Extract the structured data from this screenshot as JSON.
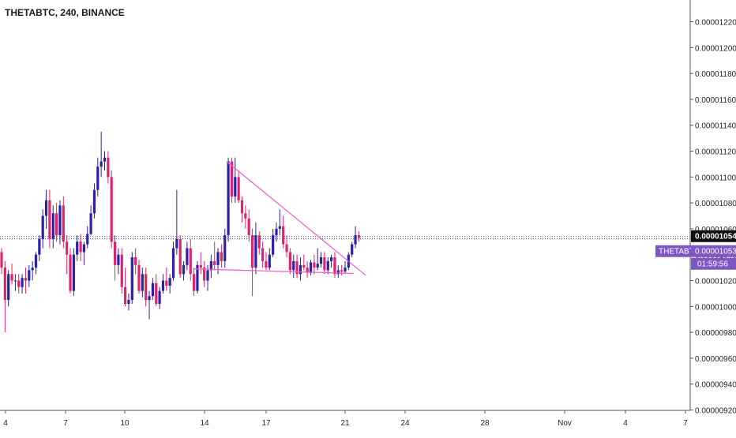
{
  "header": {
    "title": "THETABTC, 240, BINANCE"
  },
  "colors": {
    "up": "#2c1fa8",
    "down": "#e0246c",
    "trendline": "#ff55d0",
    "price_line": "#3a3aa0",
    "label_bg": "#7e57c2",
    "axis_text": "#222222"
  },
  "chart_data": {
    "type": "candlestick",
    "symbol": "THETABTC",
    "timeframe": "240",
    "exchange": "BINANCE",
    "ylim": [
      9.2e-06,
      1.23e-05
    ],
    "y_ticks": [
      "0.00001220",
      "0.00001200",
      "0.00001180",
      "0.00001160",
      "0.00001140",
      "0.00001120",
      "0.00001100",
      "0.00001080",
      "0.00001060",
      "0.00001040",
      "0.00001020",
      "0.00001000",
      "0.00000980",
      "0.00000960",
      "0.00000940",
      "0.00000920"
    ],
    "x_ticks": [
      {
        "label": "4",
        "date": "2019-10-04"
      },
      {
        "label": "7",
        "date": "2019-10-07"
      },
      {
        "label": "10",
        "date": "2019-10-10"
      },
      {
        "label": "14",
        "date": "2019-10-14"
      },
      {
        "label": "17",
        "date": "2019-10-17"
      },
      {
        "label": "21",
        "date": "2019-10-21"
      },
      {
        "label": "24",
        "date": "2019-10-24"
      },
      {
        "label": "28",
        "date": "2019-10-28"
      },
      {
        "label": "Nov",
        "date": "2019-11-01"
      },
      {
        "label": "4",
        "date": "2019-11-04"
      },
      {
        "label": "7",
        "date": "2019-11-07"
      }
    ],
    "price_labels": {
      "last": "0.00001054",
      "symbol_tag": "THETABTC",
      "symbol_price": "0.00001053",
      "countdown": "01:59:56"
    },
    "candles": [
      [
        10.42,
        10.45,
        10.25,
        10.3
      ],
      [
        10.3,
        10.35,
        9.8,
        10.05
      ],
      [
        10.05,
        10.28,
        10.0,
        10.25
      ],
      [
        10.25,
        10.33,
        10.17,
        10.2
      ],
      [
        10.2,
        10.25,
        10.12,
        10.2
      ],
      [
        10.2,
        10.25,
        10.1,
        10.15
      ],
      [
        10.15,
        10.25,
        10.1,
        10.22
      ],
      [
        10.22,
        10.3,
        10.1,
        10.2
      ],
      [
        10.2,
        10.32,
        10.15,
        10.28
      ],
      [
        10.28,
        10.35,
        10.2,
        10.3
      ],
      [
        10.3,
        10.42,
        10.25,
        10.4
      ],
      [
        10.4,
        10.55,
        10.35,
        10.52
      ],
      [
        10.52,
        10.75,
        10.45,
        10.7
      ],
      [
        10.7,
        10.9,
        10.6,
        10.82
      ],
      [
        10.82,
        10.9,
        10.45,
        10.52
      ],
      [
        10.52,
        10.78,
        10.45,
        10.72
      ],
      [
        10.72,
        10.8,
        10.5,
        10.55
      ],
      [
        10.55,
        10.82,
        10.48,
        10.78
      ],
      [
        10.78,
        10.85,
        10.45,
        10.5
      ],
      [
        10.5,
        10.55,
        10.25,
        10.4
      ],
      [
        10.4,
        10.45,
        10.1,
        10.12
      ],
      [
        10.12,
        10.45,
        10.08,
        10.4
      ],
      [
        10.4,
        10.55,
        10.35,
        10.5
      ],
      [
        10.5,
        10.56,
        10.35,
        10.42
      ],
      [
        10.42,
        10.5,
        10.32,
        10.48
      ],
      [
        10.48,
        10.62,
        10.45,
        10.56
      ],
      [
        10.56,
        10.78,
        10.55,
        10.72
      ],
      [
        10.72,
        10.95,
        10.68,
        10.9
      ],
      [
        10.9,
        11.15,
        10.85,
        11.08
      ],
      [
        11.08,
        11.35,
        11.0,
        11.12
      ],
      [
        11.12,
        11.2,
        11.05,
        11.15
      ],
      [
        11.15,
        11.2,
        10.95,
        11.0
      ],
      [
        11.0,
        11.05,
        10.45,
        10.5
      ],
      [
        10.5,
        10.55,
        10.2,
        10.32
      ],
      [
        10.32,
        10.45,
        10.25,
        10.4
      ],
      [
        10.4,
        10.45,
        10.1,
        10.15
      ],
      [
        10.15,
        10.3,
        10.0,
        10.02
      ],
      [
        10.02,
        10.1,
        9.97,
        10.05
      ],
      [
        10.05,
        10.42,
        10.02,
        10.38
      ],
      [
        10.38,
        10.45,
        10.25,
        10.32
      ],
      [
        10.32,
        10.36,
        10.1,
        10.12
      ],
      [
        10.12,
        10.3,
        10.07,
        10.25
      ],
      [
        10.25,
        10.3,
        10.0,
        10.05
      ],
      [
        10.05,
        10.12,
        9.9,
        10.08
      ],
      [
        10.08,
        10.22,
        10.05,
        10.18
      ],
      [
        10.18,
        10.25,
        10.0,
        10.02
      ],
      [
        10.02,
        10.15,
        9.98,
        10.12
      ],
      [
        10.12,
        10.25,
        10.1,
        10.2
      ],
      [
        10.2,
        10.3,
        10.12,
        10.16
      ],
      [
        10.16,
        10.25,
        10.1,
        10.22
      ],
      [
        10.22,
        10.5,
        10.2,
        10.45
      ],
      [
        10.45,
        10.9,
        10.4,
        10.52
      ],
      [
        10.52,
        10.55,
        10.22,
        10.25
      ],
      [
        10.25,
        10.35,
        10.2,
        10.32
      ],
      [
        10.32,
        10.5,
        10.28,
        10.45
      ],
      [
        10.45,
        10.52,
        10.2,
        10.25
      ],
      [
        10.25,
        10.3,
        10.08,
        10.12
      ],
      [
        10.12,
        10.35,
        10.1,
        10.32
      ],
      [
        10.32,
        10.42,
        10.25,
        10.3
      ],
      [
        10.3,
        10.35,
        10.15,
        10.2
      ],
      [
        10.2,
        10.32,
        10.12,
        10.28
      ],
      [
        10.28,
        10.4,
        10.22,
        10.35
      ],
      [
        10.35,
        10.5,
        10.28,
        10.32
      ],
      [
        10.32,
        10.45,
        10.25,
        10.42
      ],
      [
        10.42,
        10.48,
        10.3,
        10.35
      ],
      [
        10.35,
        10.6,
        10.3,
        10.55
      ],
      [
        10.55,
        11.15,
        10.5,
        11.12
      ],
      [
        11.12,
        11.15,
        10.8,
        10.85
      ],
      [
        10.85,
        11.15,
        10.8,
        11.0
      ],
      [
        11.0,
        11.05,
        10.8,
        10.82
      ],
      [
        10.82,
        10.85,
        10.65,
        10.72
      ],
      [
        10.72,
        10.78,
        10.6,
        10.68
      ],
      [
        10.68,
        10.75,
        10.5,
        10.55
      ],
      [
        10.55,
        10.6,
        10.08,
        10.3
      ],
      [
        10.3,
        10.65,
        10.25,
        10.55
      ],
      [
        10.55,
        10.58,
        10.4,
        10.45
      ],
      [
        10.45,
        10.5,
        10.3,
        10.35
      ],
      [
        10.35,
        10.42,
        10.28,
        10.3
      ],
      [
        10.3,
        10.45,
        10.28,
        10.4
      ],
      [
        10.4,
        10.6,
        10.38,
        10.55
      ],
      [
        10.55,
        10.65,
        10.5,
        10.6
      ],
      [
        10.6,
        10.75,
        10.55,
        10.62
      ],
      [
        10.62,
        10.7,
        10.45,
        10.48
      ],
      [
        10.48,
        10.55,
        10.38,
        10.42
      ],
      [
        10.42,
        10.45,
        10.25,
        10.28
      ],
      [
        10.28,
        10.4,
        10.22,
        10.35
      ],
      [
        10.35,
        10.4,
        10.22,
        10.25
      ],
      [
        10.25,
        10.38,
        10.2,
        10.32
      ],
      [
        10.32,
        10.4,
        10.28,
        10.3
      ],
      [
        10.3,
        10.35,
        10.22,
        10.26
      ],
      [
        10.26,
        10.36,
        10.24,
        10.34
      ],
      [
        10.34,
        10.4,
        10.25,
        10.3
      ],
      [
        10.3,
        10.45,
        10.28,
        10.33
      ],
      [
        10.33,
        10.42,
        10.3,
        10.38
      ],
      [
        10.38,
        10.42,
        10.25,
        10.28
      ],
      [
        10.28,
        10.38,
        10.25,
        10.35
      ],
      [
        10.35,
        10.4,
        10.3,
        10.38
      ],
      [
        10.38,
        10.42,
        10.22,
        10.25
      ],
      [
        10.25,
        10.32,
        10.22,
        10.28
      ],
      [
        10.28,
        10.32,
        10.24,
        10.27
      ],
      [
        10.27,
        10.35,
        10.25,
        10.3
      ],
      [
        10.3,
        10.42,
        10.28,
        10.4
      ],
      [
        10.4,
        10.5,
        10.38,
        10.48
      ],
      [
        10.48,
        10.62,
        10.45,
        10.55
      ],
      [
        10.55,
        10.58,
        10.5,
        10.53
      ]
    ],
    "annotations": [
      {
        "type": "descending-trendline",
        "from": [
          65.5,
          11.12
        ],
        "to": [
          106,
          10.24
        ]
      },
      {
        "type": "support-line",
        "from": [
          56,
          10.29
        ],
        "to": [
          102.5,
          10.255
        ]
      }
    ]
  }
}
